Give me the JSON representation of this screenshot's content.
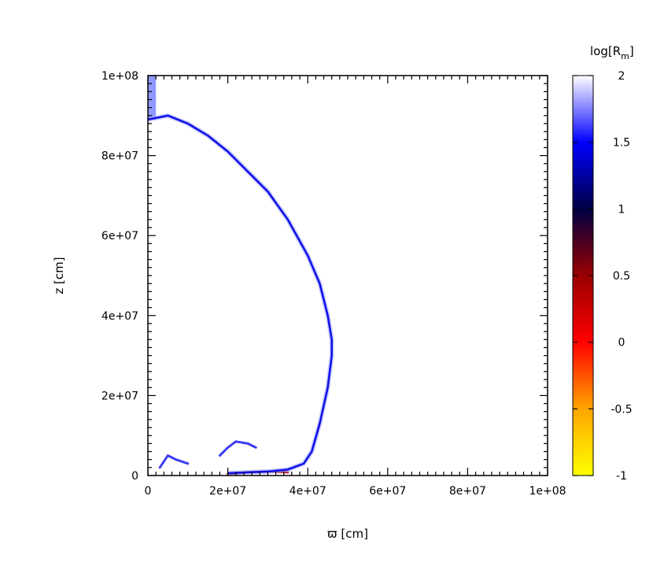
{
  "chart_data": {
    "type": "heatmap",
    "xlabel": "ϖ [cm]",
    "ylabel": "z [cm]",
    "xlim": [
      0,
      100000000
    ],
    "ylim": [
      0,
      100000000
    ],
    "x_ticks": [
      "0",
      "2e+07",
      "4e+07",
      "6e+07",
      "8e+07",
      "1e+08"
    ],
    "y_ticks": [
      "0",
      "2e+07",
      "4e+07",
      "6e+07",
      "8e+07",
      "1e+08"
    ],
    "colorbar": {
      "label_main": "log[R",
      "label_sub": "m",
      "label_end": "]",
      "range": [
        -1,
        2
      ],
      "ticks": [
        "-1",
        "-0.5",
        "0",
        "0.5",
        "1",
        "1.5",
        "2"
      ],
      "stops": [
        {
          "value": -1,
          "color": "#ffff00"
        },
        {
          "value": -0.5,
          "color": "#ffa500"
        },
        {
          "value": 0,
          "color": "#ff0000"
        },
        {
          "value": 0.5,
          "color": "#990000"
        },
        {
          "value": 1,
          "color": "#000044"
        },
        {
          "value": 1.5,
          "color": "#0000ff"
        },
        {
          "value": 2,
          "color": "#ffffff"
        }
      ]
    },
    "shock_front": {
      "x": [
        0,
        5000000,
        10000000,
        15000000,
        20000000,
        25000000,
        30000000,
        35000000,
        40000000,
        43000000,
        45000000,
        46000000,
        46000000,
        45000000,
        43000000,
        41000000,
        39000000,
        35000000,
        30000000,
        25000000,
        20000000
      ],
      "y": [
        89000000,
        90000000,
        88000000,
        85000000,
        81000000,
        76000000,
        71000000,
        64000000,
        55000000,
        48000000,
        40000000,
        34000000,
        30000000,
        22000000,
        13000000,
        6000000,
        3000000,
        1500000,
        1000000,
        800000,
        600000
      ]
    },
    "polar_jet": {
      "x": [
        0,
        2000000
      ],
      "y": [
        89000000,
        100000000
      ]
    },
    "inner_features": [
      {
        "x": [
          3000000,
          5000000,
          7000000,
          10000000
        ],
        "y": [
          2000000,
          5000000,
          4000000,
          3000000
        ]
      },
      {
        "x": [
          18000000,
          20000000,
          22000000,
          25000000,
          27000000
        ],
        "y": [
          5000000,
          7000000,
          8500000,
          8000000,
          7000000
        ]
      },
      {
        "x": [
          20000000,
          25000000,
          30000000,
          35000000
        ],
        "y": [
          400000,
          800000,
          1000000,
          800000
        ]
      }
    ]
  }
}
